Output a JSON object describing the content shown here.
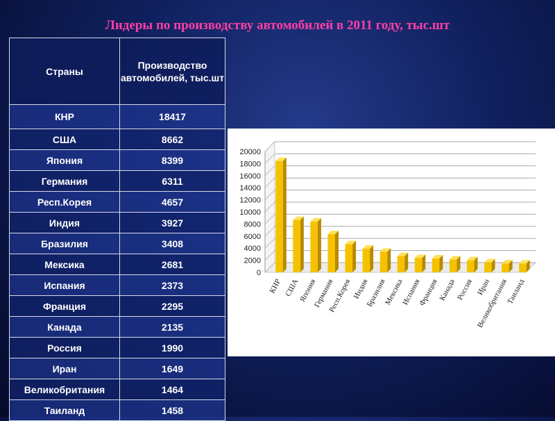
{
  "title": "Лидеры по производству автомобилей в 2011 году, тыс.шт",
  "table": {
    "headers": [
      "Страны",
      "Производство автомобилей, тыс.шт"
    ],
    "rows": [
      {
        "country": "КНР",
        "value": "18417"
      },
      {
        "country": "США",
        "value": "8662"
      },
      {
        "country": "Япония",
        "value": "8399"
      },
      {
        "country": "Германия",
        "value": "6311"
      },
      {
        "country": "Респ.Корея",
        "value": "4657"
      },
      {
        "country": "Индия",
        "value": "3927"
      },
      {
        "country": "Бразилия",
        "value": "3408"
      },
      {
        "country": "Мексика",
        "value": "2681"
      },
      {
        "country": "Испания",
        "value": "2373"
      },
      {
        "country": "Франция",
        "value": "2295"
      },
      {
        "country": "Канада",
        "value": "2135"
      },
      {
        "country": "Россия",
        "value": "1990"
      },
      {
        "country": "Иран",
        "value": "1649"
      },
      {
        "country": "Великобритания",
        "value": "1464"
      },
      {
        "country": "Таиланд",
        "value": "1458"
      }
    ]
  },
  "colors": {
    "title": "#ff3fa6",
    "bar": "#f5c200",
    "bar_dark": "#b88a00",
    "bar_top": "#ffe15a"
  },
  "chart_data": {
    "type": "bar",
    "categories": [
      "КНР",
      "США",
      "Япония",
      "Германия",
      "Респ.Корея",
      "Индия",
      "Бразилия",
      "Мексика",
      "Испания",
      "Франция",
      "Канада",
      "Россия",
      "Иран",
      "Великобритания",
      "Таиланд"
    ],
    "values": [
      18417,
      8662,
      8399,
      6311,
      4657,
      3927,
      3408,
      2681,
      2373,
      2295,
      2135,
      1990,
      1649,
      1464,
      1458
    ],
    "yticks": [
      0,
      2000,
      4000,
      6000,
      8000,
      10000,
      12000,
      14000,
      16000,
      18000,
      20000
    ],
    "ylim": [
      0,
      20000
    ],
    "grid": true,
    "legend": false
  }
}
